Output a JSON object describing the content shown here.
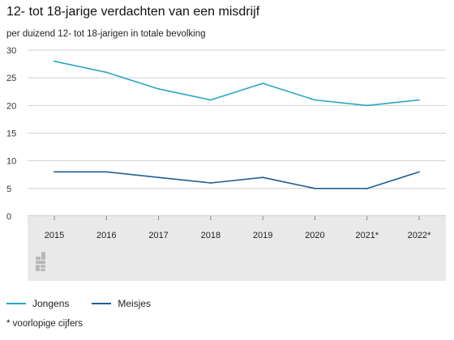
{
  "title": "12- tot 18-jarige verdachten van een misdrijf",
  "subtitle": "per duizend 12- tot 18-jarigen in totale bevolking",
  "footnote": "* voorlopige cijfers",
  "chart_data": {
    "type": "line",
    "title": "12- tot 18-jarige verdachten van een misdrijf",
    "subtitle": "per duizend 12- tot 18-jarigen in totale bevolking",
    "categories": [
      "2015",
      "2016",
      "2017",
      "2018",
      "2019",
      "2020",
      "2021*",
      "2022*"
    ],
    "yticks": [
      0,
      5,
      10,
      15,
      20,
      25,
      30
    ],
    "ylim": [
      0,
      30
    ],
    "grid": true,
    "legend_position": "bottom",
    "series": [
      {
        "name": "Jongens",
        "color": "#29a6c4",
        "values": [
          28,
          26,
          23,
          21,
          24,
          21,
          20,
          21
        ]
      },
      {
        "name": "Meisjes",
        "color": "#1e5f94",
        "values": [
          8,
          8,
          7,
          6,
          7,
          5,
          5,
          8
        ]
      }
    ]
  }
}
